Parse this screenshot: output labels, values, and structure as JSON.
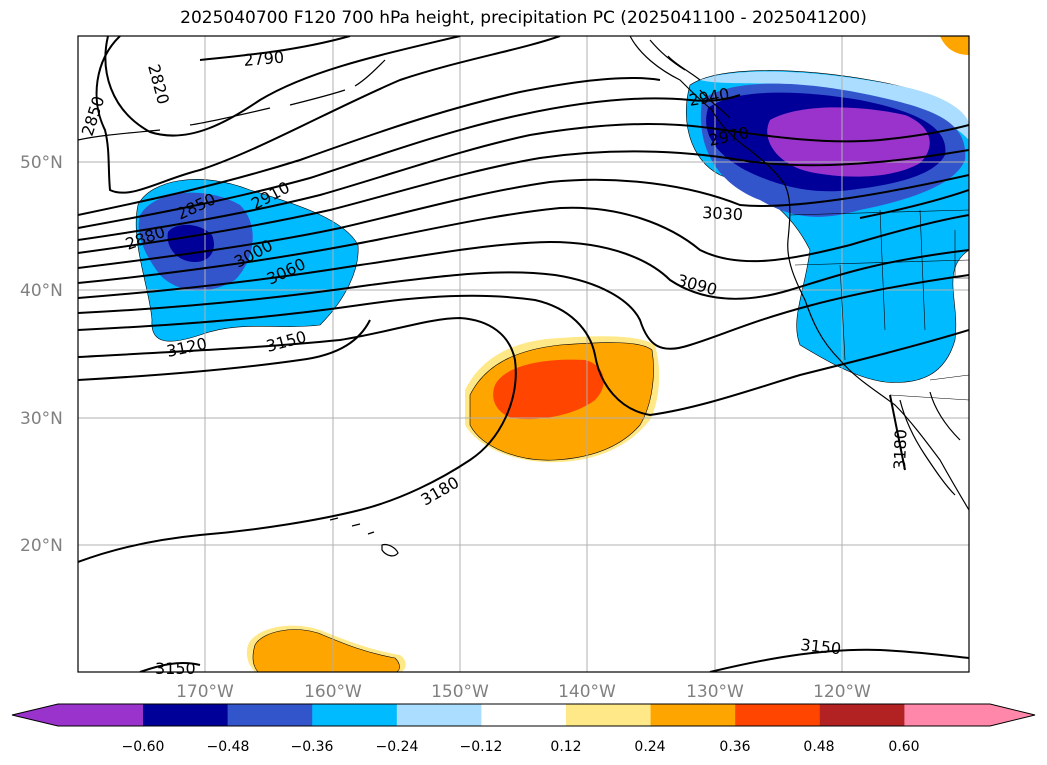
{
  "title": "2025040700 F120 700 hPa height, precipitation PC (2025041100 - 2025041200)",
  "lat_labels": [
    "50°N",
    "40°N",
    "30°N",
    "20°N"
  ],
  "lon_labels": [
    "170°W",
    "160°W",
    "150°W",
    "140°W",
    "130°W",
    "120°W"
  ],
  "contour_labels": [
    "2790",
    "2820",
    "2850",
    "2850",
    "2880",
    "2910",
    "3000",
    "3060",
    "3120",
    "3150",
    "3150",
    "3180",
    "3090",
    "3030",
    "2940",
    "2970",
    "3180",
    "3150"
  ],
  "colorbar": {
    "tick_labels": [
      "−0.60",
      "−0.48",
      "−0.36",
      "−0.24",
      "−0.12",
      "0.12",
      "0.24",
      "0.36",
      "0.48",
      "0.60"
    ],
    "colors": [
      "#9933cc",
      "#000099",
      "#3355cc",
      "#00bbff",
      "#aaddff",
      "#ffffff",
      "#ffe888",
      "#ffa500",
      "#ff4500",
      "#b22222",
      "#ff88aa"
    ]
  },
  "field_colors": {
    "contour": "#000000",
    "coast": "#000000",
    "grid": "#b0b0b0"
  }
}
